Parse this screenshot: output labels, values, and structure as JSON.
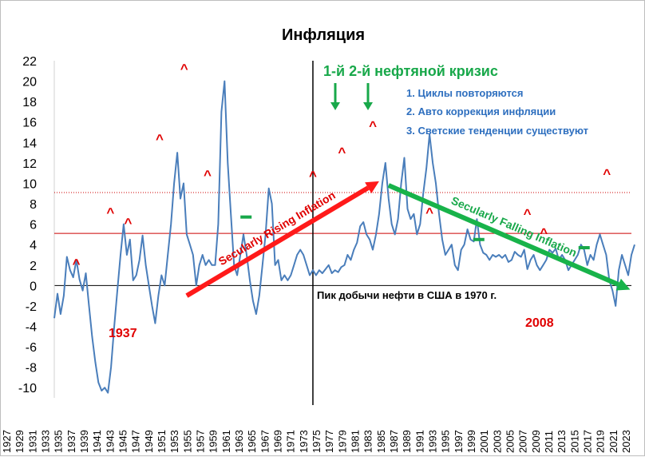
{
  "chart_data": {
    "type": "line",
    "title": "Инфляция",
    "xlabel": "",
    "ylabel": "",
    "xlim": [
      1932,
      2023.5
    ],
    "ylim": [
      -11,
      22
    ],
    "y_ticks": [
      22,
      20,
      18,
      16,
      14,
      12,
      10,
      8,
      6,
      4,
      2,
      0,
      -2,
      -4,
      -6,
      -8,
      -10
    ],
    "x_tick_labels": [
      "1927",
      "1929",
      "1931",
      "1933",
      "1935",
      "1937",
      "1939",
      "1941",
      "1943",
      "1945",
      "1947",
      "1949",
      "1951",
      "1953",
      "1955",
      "1957",
      "1959",
      "1961",
      "1963",
      "1965",
      "1967",
      "1969",
      "1971",
      "1973",
      "1975",
      "1977",
      "1979",
      "1981",
      "1983",
      "1985",
      "1987",
      "1989",
      "1991",
      "1993",
      "1995",
      "1997",
      "1999",
      "2001",
      "2003",
      "2005",
      "2007",
      "2009",
      "2011",
      "2013",
      "2015",
      "2017",
      "2019",
      "2021",
      "2023"
    ],
    "grid": false,
    "legend": "none",
    "series": [
      {
        "color": "#4a7ebb",
        "points": [
          [
            1932.0,
            -3.2
          ],
          [
            1932.5,
            -0.8
          ],
          [
            1933.0,
            -2.8
          ],
          [
            1933.5,
            -1.0
          ],
          [
            1934.0,
            2.8
          ],
          [
            1934.5,
            1.5
          ],
          [
            1935.0,
            0.8
          ],
          [
            1935.5,
            2.5
          ],
          [
            1936.0,
            0.6
          ],
          [
            1936.5,
            -0.5
          ],
          [
            1937.0,
            1.2
          ],
          [
            1937.5,
            -2.0
          ],
          [
            1938.0,
            -5.0
          ],
          [
            1938.5,
            -7.5
          ],
          [
            1939.0,
            -9.5
          ],
          [
            1939.5,
            -10.3
          ],
          [
            1940.0,
            -10.0
          ],
          [
            1940.5,
            -10.5
          ],
          [
            1941.0,
            -8.0
          ],
          [
            1941.5,
            -4.0
          ],
          [
            1942.0,
            -0.5
          ],
          [
            1942.5,
            3.0
          ],
          [
            1943.0,
            6.0
          ],
          [
            1943.5,
            3.0
          ],
          [
            1944.0,
            4.5
          ],
          [
            1944.5,
            0.5
          ],
          [
            1945.0,
            1.0
          ],
          [
            1945.5,
            2.5
          ],
          [
            1946.0,
            4.9
          ],
          [
            1946.5,
            2.0
          ],
          [
            1947.0,
            0.0
          ],
          [
            1947.5,
            -2.0
          ],
          [
            1948.0,
            -3.7
          ],
          [
            1948.5,
            -1.0
          ],
          [
            1949.0,
            1.0
          ],
          [
            1949.5,
            0.0
          ],
          [
            1950.0,
            3.0
          ],
          [
            1950.5,
            6.0
          ],
          [
            1951.0,
            10.0
          ],
          [
            1951.5,
            13.0
          ],
          [
            1952.0,
            8.5
          ],
          [
            1952.5,
            10.0
          ],
          [
            1953.0,
            5.0
          ],
          [
            1953.5,
            4.0
          ],
          [
            1954.0,
            3.0
          ],
          [
            1954.5,
            0.0
          ],
          [
            1955.0,
            2.0
          ],
          [
            1955.5,
            3.0
          ],
          [
            1956.0,
            2.0
          ],
          [
            1956.5,
            2.5
          ],
          [
            1957.0,
            2.0
          ],
          [
            1957.5,
            2.0
          ],
          [
            1958.0,
            6.0
          ],
          [
            1958.5,
            17.0
          ],
          [
            1959.0,
            20.0
          ],
          [
            1959.5,
            12.0
          ],
          [
            1960.0,
            7.0
          ],
          [
            1960.5,
            2.0
          ],
          [
            1961.0,
            1.0
          ],
          [
            1961.5,
            3.0
          ],
          [
            1962.0,
            5.0
          ],
          [
            1962.5,
            3.0
          ],
          [
            1963.0,
            0.5
          ],
          [
            1963.5,
            -1.5
          ],
          [
            1964.0,
            -2.8
          ],
          [
            1964.5,
            -1.0
          ],
          [
            1965.0,
            2.0
          ],
          [
            1965.5,
            5.0
          ],
          [
            1966.0,
            9.5
          ],
          [
            1966.5,
            8.0
          ],
          [
            1967.0,
            2.0
          ],
          [
            1967.5,
            2.5
          ],
          [
            1968.0,
            0.5
          ],
          [
            1968.5,
            1.0
          ],
          [
            1969.0,
            0.5
          ],
          [
            1969.5,
            1.0
          ],
          [
            1970.0,
            2.0
          ],
          [
            1970.5,
            3.0
          ],
          [
            1971.0,
            3.5
          ],
          [
            1971.5,
            3.0
          ],
          [
            1972.0,
            2.0
          ],
          [
            1972.5,
            1.0
          ],
          [
            1973.0,
            1.5
          ],
          [
            1973.5,
            1.0
          ],
          [
            1974.0,
            1.5
          ],
          [
            1974.5,
            1.2
          ],
          [
            1975.0,
            1.6
          ],
          [
            1975.5,
            2.0
          ],
          [
            1976.0,
            1.2
          ],
          [
            1976.5,
            1.5
          ],
          [
            1977.0,
            1.3
          ],
          [
            1977.5,
            1.8
          ],
          [
            1978.0,
            2.0
          ],
          [
            1978.5,
            3.0
          ],
          [
            1979.0,
            2.5
          ],
          [
            1979.5,
            3.5
          ],
          [
            1980.0,
            4.2
          ],
          [
            1980.5,
            5.8
          ],
          [
            1981.0,
            6.2
          ],
          [
            1981.5,
            5.0
          ],
          [
            1982.0,
            4.5
          ],
          [
            1982.5,
            3.5
          ],
          [
            1983.0,
            5.0
          ],
          [
            1983.5,
            7.0
          ],
          [
            1984.0,
            10.0
          ],
          [
            1984.5,
            12.0
          ],
          [
            1985.0,
            8.5
          ],
          [
            1985.5,
            6.0
          ],
          [
            1986.0,
            5.0
          ],
          [
            1986.5,
            6.5
          ],
          [
            1987.0,
            10.0
          ],
          [
            1987.5,
            12.5
          ],
          [
            1988.0,
            7.5
          ],
          [
            1988.5,
            6.5
          ],
          [
            1989.0,
            7.0
          ],
          [
            1989.5,
            5.0
          ],
          [
            1990.0,
            6.0
          ],
          [
            1990.5,
            9.0
          ],
          [
            1991.0,
            11.5
          ],
          [
            1991.5,
            14.8
          ],
          [
            1992.0,
            12.0
          ],
          [
            1992.5,
            10.0
          ],
          [
            1993.0,
            7.0
          ],
          [
            1993.5,
            4.5
          ],
          [
            1994.0,
            3.0
          ],
          [
            1994.5,
            3.5
          ],
          [
            1995.0,
            4.0
          ],
          [
            1995.5,
            2.0
          ],
          [
            1996.0,
            1.5
          ],
          [
            1996.5,
            3.5
          ],
          [
            1997.0,
            4.0
          ],
          [
            1997.5,
            5.5
          ],
          [
            1998.0,
            4.5
          ],
          [
            1998.5,
            4.3
          ],
          [
            1999.0,
            6.5
          ],
          [
            1999.5,
            4.0
          ],
          [
            2000.0,
            3.2
          ],
          [
            2000.5,
            3.0
          ],
          [
            2001.0,
            2.5
          ],
          [
            2001.5,
            3.0
          ],
          [
            2002.0,
            2.8
          ],
          [
            2002.5,
            3.0
          ],
          [
            2003.0,
            2.7
          ],
          [
            2003.5,
            3.0
          ],
          [
            2004.0,
            2.3
          ],
          [
            2004.5,
            2.5
          ],
          [
            2005.0,
            3.3
          ],
          [
            2005.5,
            3.0
          ],
          [
            2006.0,
            2.8
          ],
          [
            2006.5,
            3.5
          ],
          [
            2007.0,
            1.6
          ],
          [
            2007.5,
            2.5
          ],
          [
            2008.0,
            3.0
          ],
          [
            2008.5,
            2.0
          ],
          [
            2009.0,
            1.5
          ],
          [
            2009.5,
            2.0
          ],
          [
            2010.0,
            2.5
          ],
          [
            2010.5,
            3.5
          ],
          [
            2011.0,
            3.2
          ],
          [
            2011.5,
            3.6
          ],
          [
            2012.0,
            2.5
          ],
          [
            2012.5,
            3.0
          ],
          [
            2013.0,
            2.5
          ],
          [
            2013.5,
            1.5
          ],
          [
            2014.0,
            2.0
          ],
          [
            2014.5,
            2.5
          ],
          [
            2015.0,
            3.0
          ],
          [
            2015.5,
            4.0
          ],
          [
            2016.0,
            3.5
          ],
          [
            2016.5,
            2.0
          ],
          [
            2017.0,
            3.0
          ],
          [
            2017.5,
            2.5
          ],
          [
            2018.0,
            4.0
          ],
          [
            2018.5,
            5.0
          ],
          [
            2019.0,
            4.0
          ],
          [
            2019.5,
            3.0
          ],
          [
            2020.0,
            0.5
          ],
          [
            2020.5,
            -0.5
          ],
          [
            2021.0,
            -2.0
          ],
          [
            2021.5,
            1.5
          ],
          [
            2022.0,
            3.0
          ],
          [
            2022.5,
            2.0
          ],
          [
            2023.0,
            1.0
          ],
          [
            2023.5,
            3.0
          ],
          [
            2024.0,
            4.0
          ]
        ]
      }
    ],
    "trends": [
      {
        "label": "Secularly Rising Inflation",
        "color": "#ff1a1a",
        "from": [
          1953.0,
          -1.0
        ],
        "to": [
          1983.5,
          10.2
        ]
      },
      {
        "label": "Secularly Falling Inflation",
        "color": "#18b34a",
        "from": [
          1985.0,
          9.8
        ],
        "to": [
          2023.3,
          -0.4
        ]
      }
    ],
    "hlines": [
      {
        "y": 9.1,
        "color": "#cc0000",
        "style": "dotted"
      },
      {
        "y": 5.1,
        "color": "#cc0000",
        "style": "solid"
      }
    ],
    "vline": {
      "x": 1973.0,
      "color": "#000000"
    },
    "markers": [
      {
        "text": "^",
        "x": 1935.5,
        "y": 1.7
      },
      {
        "text": "^",
        "x": 1940.9,
        "y": 6.7
      },
      {
        "text": "^",
        "x": 1943.7,
        "y": 5.7
      },
      {
        "text": "^",
        "x": 1948.7,
        "y": 13.9
      },
      {
        "text": "^",
        "x": 1952.6,
        "y": 20.8
      },
      {
        "text": "^",
        "x": 1956.3,
        "y": 10.4
      },
      {
        "text": "^",
        "x": 1973.0,
        "y": 10.3
      },
      {
        "text": "^",
        "x": 1977.6,
        "y": 12.6
      },
      {
        "text": "^",
        "x": 1982.5,
        "y": 15.2
      },
      {
        "text": "^",
        "x": 1991.5,
        "y": 6.7
      },
      {
        "text": "^",
        "x": 2007.0,
        "y": 6.6
      },
      {
        "text": "^",
        "x": 2009.6,
        "y": 4.7
      },
      {
        "text": "^",
        "x": 2019.6,
        "y": 10.5
      }
    ],
    "dashes": [
      {
        "x": 1962.4,
        "y": 6.7,
        "color": "#18a84a"
      },
      {
        "x": 1999.3,
        "y": 4.5,
        "color": "#18a84a"
      },
      {
        "x": 2016.0,
        "y": 3.7,
        "color": "#18a84a"
      }
    ],
    "annotations": {
      "oil_crisis": "1-й 2-й нефтяной кризис",
      "points": [
        "1. Циклы повторяются",
        "2. Авто коррекция инфляции",
        "3. Светские тенденции существуют"
      ],
      "peak_oil": "Пик добычи нефти в США в 1970 г.",
      "year_1937": "1937",
      "year_2008": "2008"
    }
  }
}
